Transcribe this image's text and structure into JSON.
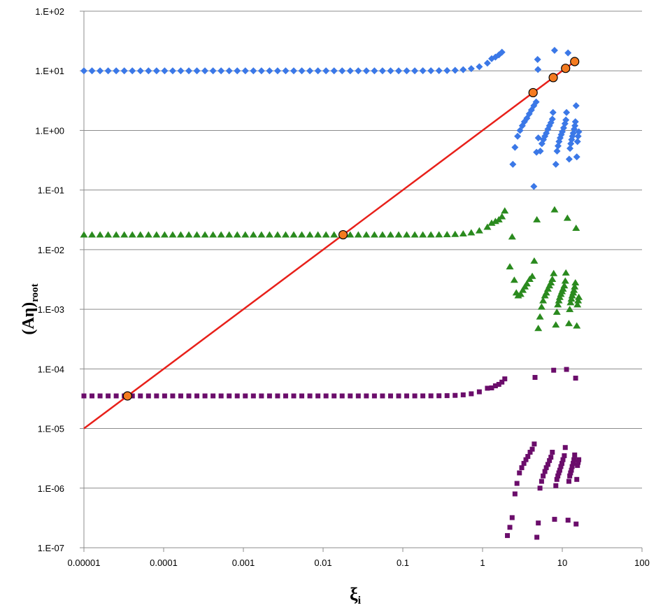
{
  "chart_data": {
    "type": "scatter",
    "title": "",
    "xlabel_main": "ξ",
    "xlabel_sub": "i",
    "ylabel_main": "(Aη)",
    "ylabel_sub": "root",
    "x_scale": "log",
    "y_scale": "log",
    "xlim": [
      1e-05,
      100
    ],
    "ylim": [
      1e-07,
      100
    ],
    "x_ticks": [
      {
        "value": 1e-05,
        "label": "0.00001"
      },
      {
        "value": 0.0001,
        "label": "0.0001"
      },
      {
        "value": 0.001,
        "label": "0.001"
      },
      {
        "value": 0.01,
        "label": "0.01"
      },
      {
        "value": 0.1,
        "label": "0.1"
      },
      {
        "value": 1,
        "label": "1"
      },
      {
        "value": 10,
        "label": "10"
      },
      {
        "value": 100,
        "label": "100"
      }
    ],
    "y_ticks": [
      {
        "value": 100,
        "label": "1.E+02"
      },
      {
        "value": 10,
        "label": "1.E+01"
      },
      {
        "value": 1,
        "label": "1.E+00"
      },
      {
        "value": 0.1,
        "label": "1.E-01"
      },
      {
        "value": 0.01,
        "label": "1.E-02"
      },
      {
        "value": 0.001,
        "label": "1.E-03"
      },
      {
        "value": 0.0001,
        "label": "1.E-04"
      },
      {
        "value": 1e-05,
        "label": "1.E-05"
      },
      {
        "value": 1e-06,
        "label": "1.E-06"
      },
      {
        "value": 1e-07,
        "label": "1.E-07"
      }
    ],
    "grid": "horizontal",
    "legend": "none",
    "series": [
      {
        "marker": "diamond",
        "color": "#3b78e7",
        "plateau": 10.0,
        "points": [
          [
            1.3,
            16
          ],
          [
            1.45,
            17
          ],
          [
            1.6,
            18.5
          ],
          [
            1.75,
            20.5
          ],
          [
            2.4,
            0.27
          ],
          [
            2.55,
            0.52
          ],
          [
            2.75,
            0.8
          ],
          [
            2.95,
            1.0
          ],
          [
            3.15,
            1.2
          ],
          [
            3.35,
            1.4
          ],
          [
            3.6,
            1.6
          ],
          [
            3.85,
            1.9
          ],
          [
            4.1,
            2.2
          ],
          [
            4.4,
            2.6
          ],
          [
            4.7,
            3.0
          ],
          [
            4.9,
            15.5
          ],
          [
            4.95,
            10.5
          ],
          [
            4.4,
            0.115
          ],
          [
            4.75,
            0.43
          ],
          [
            5.0,
            0.75
          ],
          [
            5.3,
            0.45
          ],
          [
            5.55,
            0.6
          ],
          [
            5.8,
            0.7
          ],
          [
            6.05,
            0.8
          ],
          [
            6.3,
            0.9
          ],
          [
            6.6,
            1.05
          ],
          [
            6.9,
            1.2
          ],
          [
            7.2,
            1.35
          ],
          [
            7.5,
            1.55
          ],
          [
            7.65,
            2.0
          ],
          [
            8.0,
            22
          ],
          [
            8.3,
            0.27
          ],
          [
            8.6,
            0.45
          ],
          [
            8.85,
            0.55
          ],
          [
            9.1,
            0.65
          ],
          [
            9.4,
            0.75
          ],
          [
            9.7,
            0.85
          ],
          [
            10.0,
            0.95
          ],
          [
            10.4,
            1.1
          ],
          [
            10.8,
            1.3
          ],
          [
            11.1,
            1.5
          ],
          [
            11.3,
            2.0
          ],
          [
            11.8,
            20
          ],
          [
            12.2,
            0.33
          ],
          [
            12.5,
            0.5
          ],
          [
            12.8,
            0.6
          ],
          [
            13.1,
            0.7
          ],
          [
            13.4,
            0.8
          ],
          [
            13.7,
            0.9
          ],
          [
            14.1,
            1.05
          ],
          [
            14.4,
            1.2
          ],
          [
            14.6,
            1.4
          ],
          [
            14.9,
            2.6
          ],
          [
            15.2,
            0.36
          ],
          [
            15.5,
            0.65
          ],
          [
            15.8,
            0.8
          ],
          [
            16.1,
            0.95
          ]
        ]
      },
      {
        "marker": "triangle",
        "color": "#2a8a1e",
        "plateau": 0.0178,
        "points": [
          [
            1.3,
            0.028
          ],
          [
            1.45,
            0.03
          ],
          [
            1.6,
            0.032
          ],
          [
            1.75,
            0.036
          ],
          [
            1.9,
            0.045
          ],
          [
            2.2,
            0.0052
          ],
          [
            2.35,
            0.0165
          ],
          [
            2.5,
            0.0031
          ],
          [
            2.65,
            0.0019
          ],
          [
            2.8,
            0.0017
          ],
          [
            3.0,
            0.0018
          ],
          [
            3.2,
            0.0021
          ],
          [
            3.4,
            0.0024
          ],
          [
            3.6,
            0.0027
          ],
          [
            3.9,
            0.0032
          ],
          [
            4.2,
            0.0036
          ],
          [
            4.45,
            0.0065
          ],
          [
            4.8,
            0.032
          ],
          [
            5.0,
            0.00048
          ],
          [
            5.25,
            0.00075
          ],
          [
            5.5,
            0.0011
          ],
          [
            5.75,
            0.0014
          ],
          [
            6.05,
            0.0017
          ],
          [
            6.3,
            0.0019
          ],
          [
            6.6,
            0.0022
          ],
          [
            6.9,
            0.0025
          ],
          [
            7.2,
            0.0028
          ],
          [
            7.5,
            0.0032
          ],
          [
            7.8,
            0.004
          ],
          [
            8.0,
            0.047
          ],
          [
            8.3,
            0.00055
          ],
          [
            8.55,
            0.0009
          ],
          [
            8.8,
            0.0012
          ],
          [
            9.05,
            0.0014
          ],
          [
            9.3,
            0.0016
          ],
          [
            9.6,
            0.0018
          ],
          [
            9.9,
            0.002
          ],
          [
            10.2,
            0.0022
          ],
          [
            10.6,
            0.0025
          ],
          [
            10.9,
            0.003
          ],
          [
            11.1,
            0.0041
          ],
          [
            11.6,
            0.034
          ],
          [
            12.1,
            0.00058
          ],
          [
            12.4,
            0.001
          ],
          [
            12.7,
            0.0013
          ],
          [
            13.0,
            0.0015
          ],
          [
            13.3,
            0.0017
          ],
          [
            13.7,
            0.0019
          ],
          [
            14.0,
            0.0021
          ],
          [
            14.3,
            0.0024
          ],
          [
            14.6,
            0.0028
          ],
          [
            14.9,
            0.023
          ],
          [
            15.2,
            0.00053
          ],
          [
            15.5,
            0.0012
          ],
          [
            15.8,
            0.0014
          ],
          [
            16.1,
            0.0016
          ]
        ]
      },
      {
        "marker": "square",
        "color": "#6b0d6b",
        "plateau": 3.52e-05,
        "points": [
          [
            1.3,
            4.8e-05
          ],
          [
            1.45,
            5.2e-05
          ],
          [
            1.6,
            5.5e-05
          ],
          [
            1.75,
            6e-05
          ],
          [
            1.9,
            6.8e-05
          ],
          [
            2.05,
            1.6e-07
          ],
          [
            2.2,
            2.2e-07
          ],
          [
            2.35,
            3.2e-07
          ],
          [
            2.55,
            8e-07
          ],
          [
            2.7,
            1.2e-06
          ],
          [
            2.9,
            1.8e-06
          ],
          [
            3.1,
            2.2e-06
          ],
          [
            3.3,
            2.6e-06
          ],
          [
            3.5,
            3e-06
          ],
          [
            3.7,
            3.4e-06
          ],
          [
            3.95,
            4e-06
          ],
          [
            4.2,
            4.5e-06
          ],
          [
            4.45,
            5.5e-06
          ],
          [
            4.55,
            7.2e-05
          ],
          [
            4.8,
            1.5e-07
          ],
          [
            5.0,
            2.6e-07
          ],
          [
            5.25,
            1e-06
          ],
          [
            5.5,
            1.3e-06
          ],
          [
            5.75,
            1.6e-06
          ],
          [
            6.05,
            1.9e-06
          ],
          [
            6.3,
            2.2e-06
          ],
          [
            6.6,
            2.5e-06
          ],
          [
            6.9,
            2.9e-06
          ],
          [
            7.2,
            3.3e-06
          ],
          [
            7.5,
            4e-06
          ],
          [
            7.8,
            9.5e-05
          ],
          [
            8.0,
            3e-07
          ],
          [
            8.3,
            1.1e-06
          ],
          [
            8.55,
            1.4e-06
          ],
          [
            8.8,
            1.6e-06
          ],
          [
            9.05,
            1.8e-06
          ],
          [
            9.3,
            2e-06
          ],
          [
            9.6,
            2.3e-06
          ],
          [
            9.9,
            2.6e-06
          ],
          [
            10.2,
            3e-06
          ],
          [
            10.6,
            3.5e-06
          ],
          [
            10.9,
            4.8e-06
          ],
          [
            11.3,
            9.8e-05
          ],
          [
            11.8,
            2.9e-07
          ],
          [
            12.1,
            1.3e-06
          ],
          [
            12.4,
            1.6e-06
          ],
          [
            12.7,
            1.8e-06
          ],
          [
            13.0,
            2e-06
          ],
          [
            13.3,
            2.3e-06
          ],
          [
            13.7,
            2.6e-06
          ],
          [
            14.0,
            3e-06
          ],
          [
            14.3,
            3.6e-06
          ],
          [
            14.7,
            7e-05
          ],
          [
            14.9,
            2.5e-07
          ],
          [
            15.2,
            1.4e-06
          ],
          [
            15.5,
            2.4e-06
          ],
          [
            15.8,
            2.7e-06
          ],
          [
            16.1,
            3e-06
          ]
        ]
      }
    ],
    "line": {
      "color": "#e8201a",
      "points": [
        [
          1e-05,
          1e-05
        ],
        [
          14,
          14
        ]
      ]
    },
    "intersections": {
      "color": "#f47b20",
      "points": [
        [
          3.52e-05,
          3.52e-05
        ],
        [
          0.0178,
          0.0178
        ],
        [
          4.3,
          4.3
        ],
        [
          7.7,
          7.7
        ],
        [
          11.0,
          11.0
        ],
        [
          14.3,
          14.3
        ]
      ]
    }
  }
}
